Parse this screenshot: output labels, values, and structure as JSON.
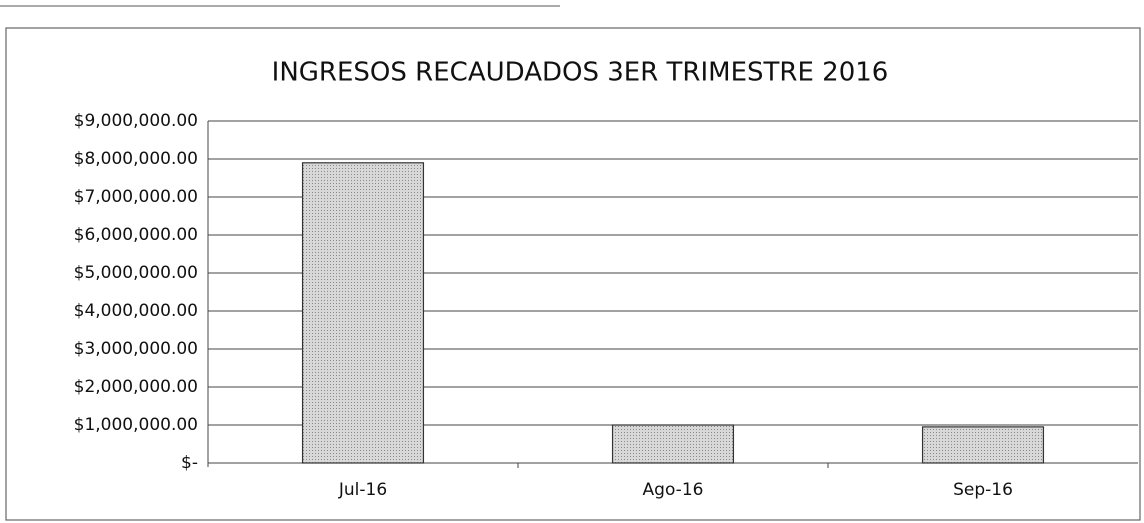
{
  "chart_data": {
    "type": "bar",
    "title": "INGRESOS RECAUDADOS 3ER TRIMESTRE 2016",
    "categories": [
      "Jul-16",
      "Ago-16",
      "Sep-16"
    ],
    "values": [
      7900000,
      1000000,
      950000
    ],
    "color": "#cfcfcf",
    "ylim": [
      0,
      9000000
    ],
    "yticks": [
      {
        "value": 0,
        "label": "$-"
      },
      {
        "value": 1000000,
        "label": "$1,000,000.00"
      },
      {
        "value": 2000000,
        "label": "$2,000,000.00"
      },
      {
        "value": 3000000,
        "label": "$3,000,000.00"
      },
      {
        "value": 4000000,
        "label": "$4,000,000.00"
      },
      {
        "value": 5000000,
        "label": "$5,000,000.00"
      },
      {
        "value": 6000000,
        "label": "$6,000,000.00"
      },
      {
        "value": 7000000,
        "label": "$7,000,000.00"
      },
      {
        "value": 8000000,
        "label": "$8,000,000.00"
      },
      {
        "value": 9000000,
        "label": "$9,000,000.00"
      }
    ],
    "grid": true
  }
}
